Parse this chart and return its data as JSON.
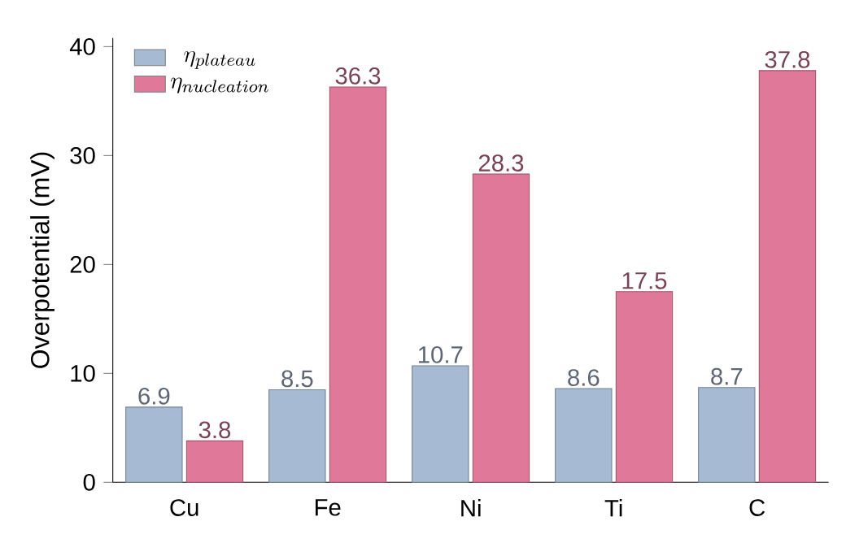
{
  "chart_data": {
    "type": "bar",
    "ylabel": "Overpotential (mV)",
    "categories": [
      "Cu",
      "Fe",
      "Ni",
      "Ti",
      "C"
    ],
    "series": [
      {
        "name": "\\eta_{plateau}",
        "color": "#a7bad3",
        "values": [
          6.9,
          8.5,
          10.7,
          8.6,
          8.7
        ],
        "value_labels": [
          "6.9",
          "8.5",
          "10.7",
          "8.6",
          "8.7"
        ]
      },
      {
        "name": "\\eta_{nucleation}",
        "color": "#e0789a",
        "values": [
          3.8,
          36.3,
          28.3,
          17.5,
          37.8
        ],
        "value_labels": [
          "3.8",
          "36.3",
          "28.3",
          "17.5",
          "37.8"
        ]
      }
    ],
    "ylim": [
      0,
      40.8
    ],
    "yticks": [
      0,
      10,
      20,
      30,
      40
    ],
    "legend": "top left",
    "grid": false
  }
}
